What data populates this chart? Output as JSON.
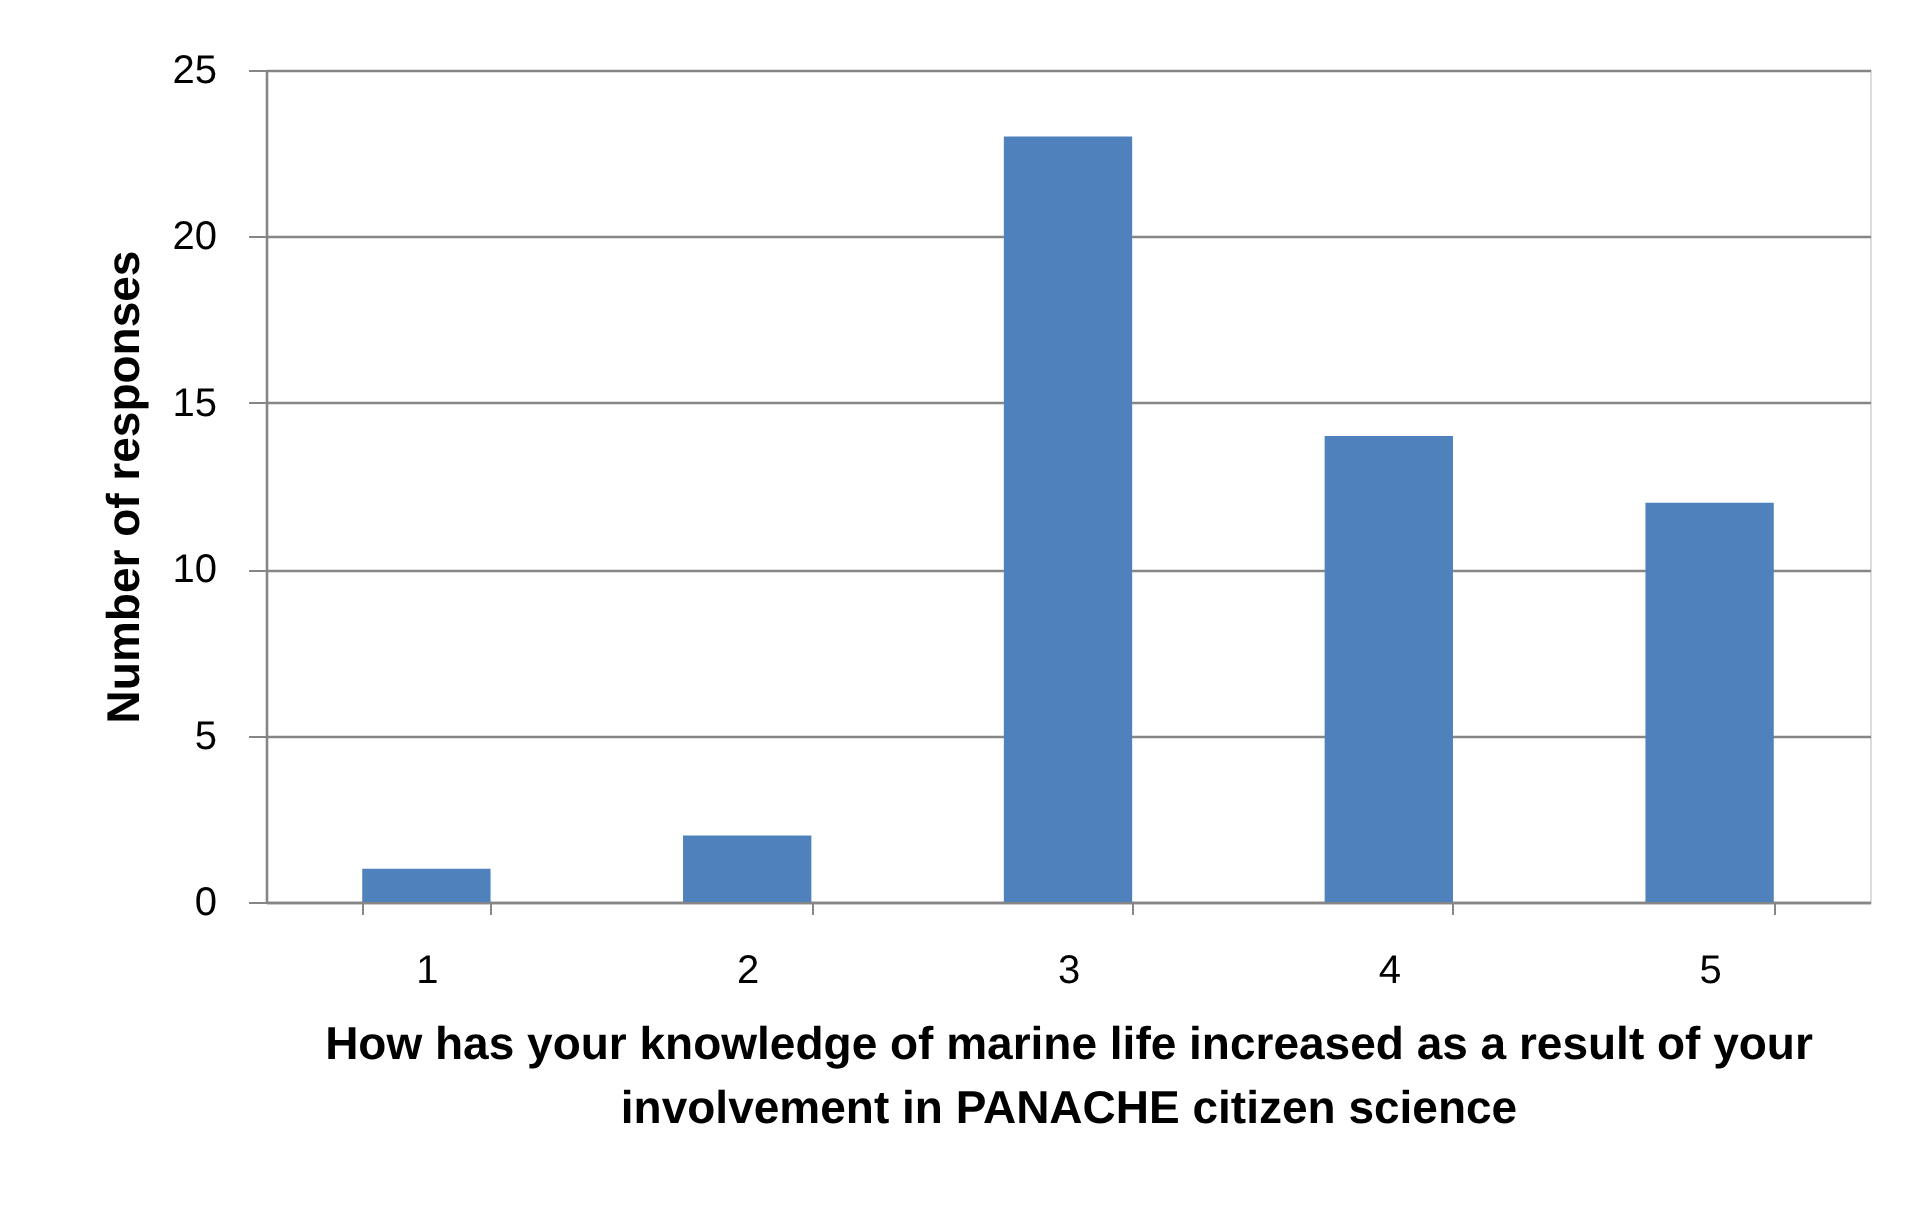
{
  "chart_data": {
    "type": "bar",
    "xlabel": "How has your knowledge of marine life increased as a result of your involvement in PANACHE citizen science",
    "ylabel": "Number of responses",
    "categories": [
      "1",
      "2",
      "3",
      "4",
      "5"
    ],
    "values": [
      1,
      2,
      23,
      14,
      12
    ],
    "color": "#4f81bd",
    "ylim": [
      0,
      25
    ],
    "yticks": [
      0,
      5,
      10,
      15,
      20,
      25
    ],
    "grid": "y"
  }
}
